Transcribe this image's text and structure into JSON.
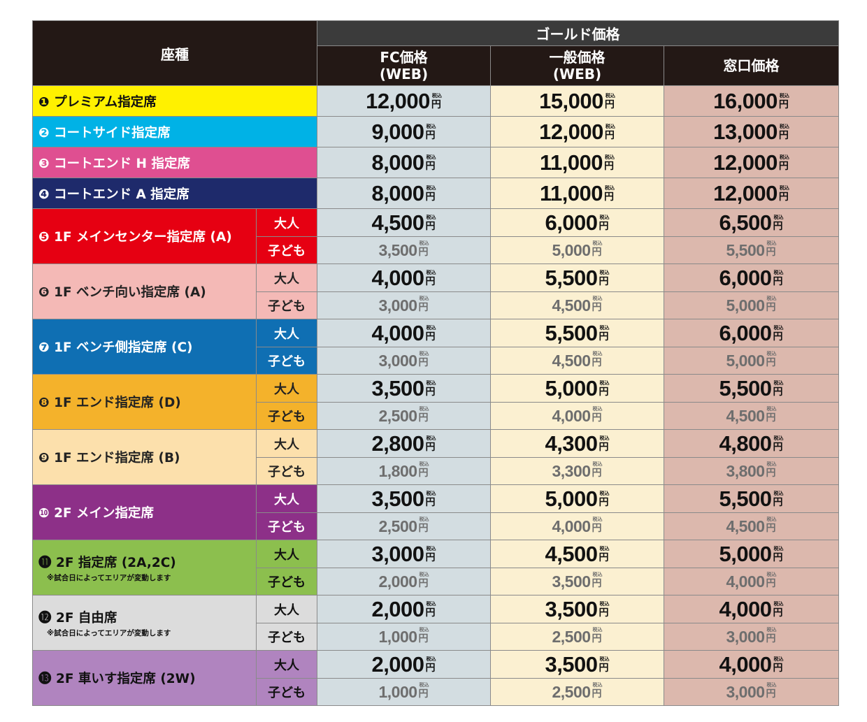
{
  "header": {
    "seat_type": "座種",
    "gold": "ゴールド価格",
    "fc_line1": "FC価格",
    "fc_line2": "(WEB)",
    "gen_line1": "一般価格",
    "gen_line2": "(WEB)",
    "win": "窓口価格"
  },
  "tax_mark": "税込",
  "yen": "円",
  "labels": {
    "adult": "大人",
    "child": "子ども"
  },
  "colors": {
    "header_bg": "#231815",
    "gold_header_bg": "#3b3b3b",
    "fc_bg": "#d3dde1",
    "general_bg": "#fbf0d1",
    "window_bg": "#dcb8ad"
  },
  "seats": [
    {
      "label": "❶ プレミアム指定席",
      "bg": "#fff100",
      "fg": "#111111",
      "prices": [
        "12,000",
        "15,000",
        "16,000"
      ]
    },
    {
      "label": "❷ コートサイド指定席",
      "bg": "#00b2e6",
      "fg": "#ffffff",
      "prices": [
        "9,000",
        "12,000",
        "13,000"
      ]
    },
    {
      "label": "❸ コートエンド H 指定席",
      "bg": "#df4f91",
      "fg": "#ffffff",
      "prices": [
        "8,000",
        "11,000",
        "12,000"
      ]
    },
    {
      "label": "❹ コートエンド A 指定席",
      "bg": "#1e2a6b",
      "fg": "#ffffff",
      "prices": [
        "8,000",
        "11,000",
        "12,000"
      ]
    },
    {
      "label": "❺ 1F メインセンター指定席 (A)",
      "bg": "#e60012",
      "fg": "#ffffff",
      "subBg": "#e60012",
      "subFg": "#ffffff",
      "adult": [
        "4,500",
        "6,000",
        "6,500"
      ],
      "child": [
        "3,500",
        "5,000",
        "5,500"
      ]
    },
    {
      "label": "❻ 1F ベンチ向い指定席 (A)",
      "bg": "#f4b9b6",
      "fg": "#222222",
      "subBg": "#f4b9b6",
      "subFg": "#222222",
      "adult": [
        "4,000",
        "5,500",
        "6,000"
      ],
      "child": [
        "3,000",
        "4,500",
        "5,000"
      ]
    },
    {
      "label": "❼ 1F ベンチ側指定席 (C)",
      "bg": "#0f6fb3",
      "fg": "#ffffff",
      "subBg": "#0f6fb3",
      "subFg": "#ffffff",
      "adult": [
        "4,000",
        "5,500",
        "6,000"
      ],
      "child": [
        "3,000",
        "4,500",
        "5,000"
      ]
    },
    {
      "label": "❽ 1F エンド指定席 (D)",
      "bg": "#f4b22b",
      "fg": "#222222",
      "subBg": "#f4b22b",
      "subFg": "#222222",
      "adult": [
        "3,500",
        "5,000",
        "5,500"
      ],
      "child": [
        "2,500",
        "4,000",
        "4,500"
      ]
    },
    {
      "label": "❾ 1F エンド指定席 (B)",
      "bg": "#fce0ac",
      "fg": "#222222",
      "subBg": "#fce0ac",
      "subFg": "#222222",
      "adult": [
        "2,800",
        "4,300",
        "4,800"
      ],
      "child": [
        "1,800",
        "3,300",
        "3,800"
      ]
    },
    {
      "label": "❿ 2F メイン指定席",
      "bg": "#8d3088",
      "fg": "#ffffff",
      "subBg": "#8d3088",
      "subFg": "#ffffff",
      "adult": [
        "3,500",
        "5,000",
        "5,500"
      ],
      "child": [
        "2,500",
        "4,000",
        "4,500"
      ]
    },
    {
      "label": "⓫ 2F 指定席 (2A,2C)",
      "note": "※試合日によってエリアが変動します",
      "bg": "#8cbf4e",
      "fg": "#111111",
      "subBg": "#8cbf4e",
      "subFg": "#111111",
      "adult": [
        "3,000",
        "4,500",
        "5,000"
      ],
      "child": [
        "2,000",
        "3,500",
        "4,000"
      ]
    },
    {
      "label": "⓬ 2F 自由席",
      "note": "※試合日によってエリアが変動します",
      "bg": "#dcdcdc",
      "fg": "#111111",
      "subBg": "#dcdcdc",
      "subFg": "#111111",
      "adult": [
        "2,000",
        "3,500",
        "4,000"
      ],
      "child": [
        "1,000",
        "2,500",
        "3,000"
      ]
    },
    {
      "label": "⓭ 2F 車いす指定席 (2W)",
      "bg": "#b084bf",
      "fg": "#111111",
      "subBg": "#b084bf",
      "subFg": "#111111",
      "adult": [
        "2,000",
        "3,500",
        "4,000"
      ],
      "child": [
        "1,000",
        "2,500",
        "3,000"
      ]
    }
  ]
}
